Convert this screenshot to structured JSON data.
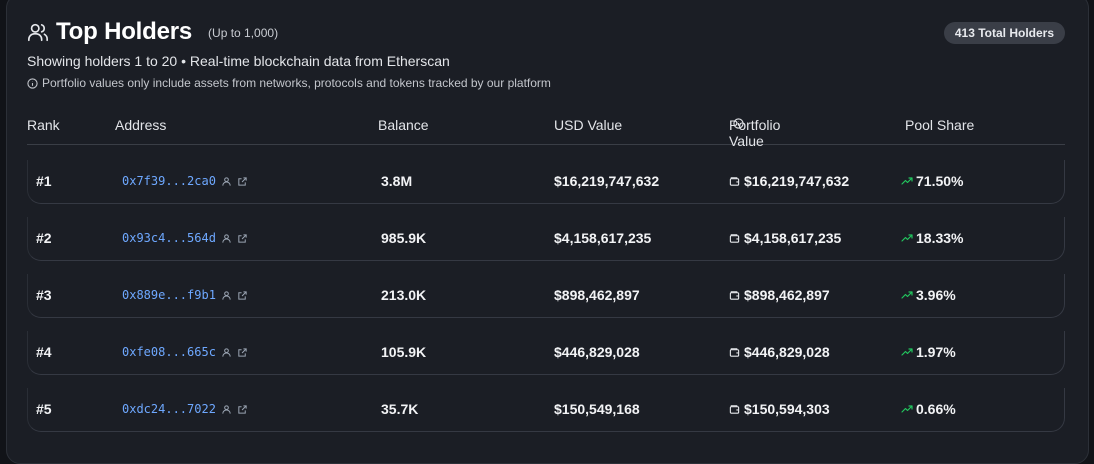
{
  "header": {
    "title": "Top Holders",
    "limit_note": "(Up to 1,000)",
    "total_badge": "413 Total Holders",
    "subtitle": "Showing holders 1 to 20 • Real-time blockchain data from Etherscan",
    "disclaimer": "Portfolio values only include assets from networks, protocols and tokens tracked by our platform"
  },
  "columns": {
    "rank": "Rank",
    "address": "Address",
    "balance": "Balance",
    "usd_value": "USD Value",
    "portfolio_value": "Portfolio Value",
    "pool_share": "Pool Share"
  },
  "rows": [
    {
      "rank": "#1",
      "address": "0x7f39...2ca0",
      "balance": "3.8M",
      "usd": "$16,219,747,632",
      "portfolio": "$16,219,747,632",
      "share": "71.50%"
    },
    {
      "rank": "#2",
      "address": "0x93c4...564d",
      "balance": "985.9K",
      "usd": "$4,158,617,235",
      "portfolio": "$4,158,617,235",
      "share": "18.33%"
    },
    {
      "rank": "#3",
      "address": "0x889e...f9b1",
      "balance": "213.0K",
      "usd": "$898,462,897",
      "portfolio": "$898,462,897",
      "share": "3.96%"
    },
    {
      "rank": "#4",
      "address": "0xfe08...665c",
      "balance": "105.9K",
      "usd": "$446,829,028",
      "portfolio": "$446,829,028",
      "share": "1.97%"
    },
    {
      "rank": "#5",
      "address": "0xdc24...7022",
      "balance": "35.7K",
      "usd": "$150,549,168",
      "portfolio": "$150,594,303",
      "share": "0.66%"
    }
  ],
  "icons": {
    "header": "users-icon",
    "info": "info-icon",
    "holder": "user-icon",
    "external": "external-link-icon",
    "wallet": "wallet-icon",
    "trend": "trending-up-icon"
  },
  "colors": {
    "address": "#6ea8ff",
    "trend": "#22c55e",
    "badge_bg": "#3a3e47"
  }
}
